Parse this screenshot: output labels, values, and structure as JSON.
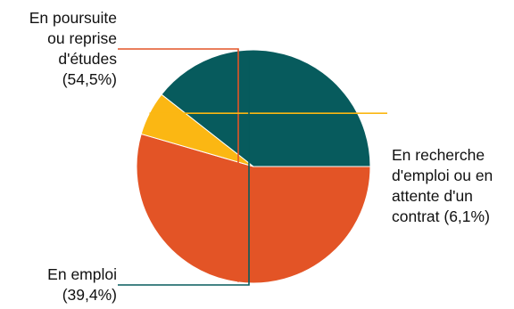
{
  "chart_data": {
    "type": "pie",
    "slices": [
      {
        "value": 54.5,
        "color": "#E35426",
        "label_lines": [
          "En poursuite",
          "ou reprise",
          "d'études",
          "(54,5%)"
        ]
      },
      {
        "value": 6.1,
        "color": "#FBB713",
        "label_lines": [
          "En recherche",
          "d'emploi ou en",
          "attente d'un",
          "contrat (6,1%)"
        ]
      },
      {
        "value": 39.4,
        "color": "#075B5D",
        "label_lines": [
          "En emploi",
          "(39,4%)"
        ]
      }
    ],
    "start_angle_deg": 90,
    "direction": "clockwise"
  }
}
